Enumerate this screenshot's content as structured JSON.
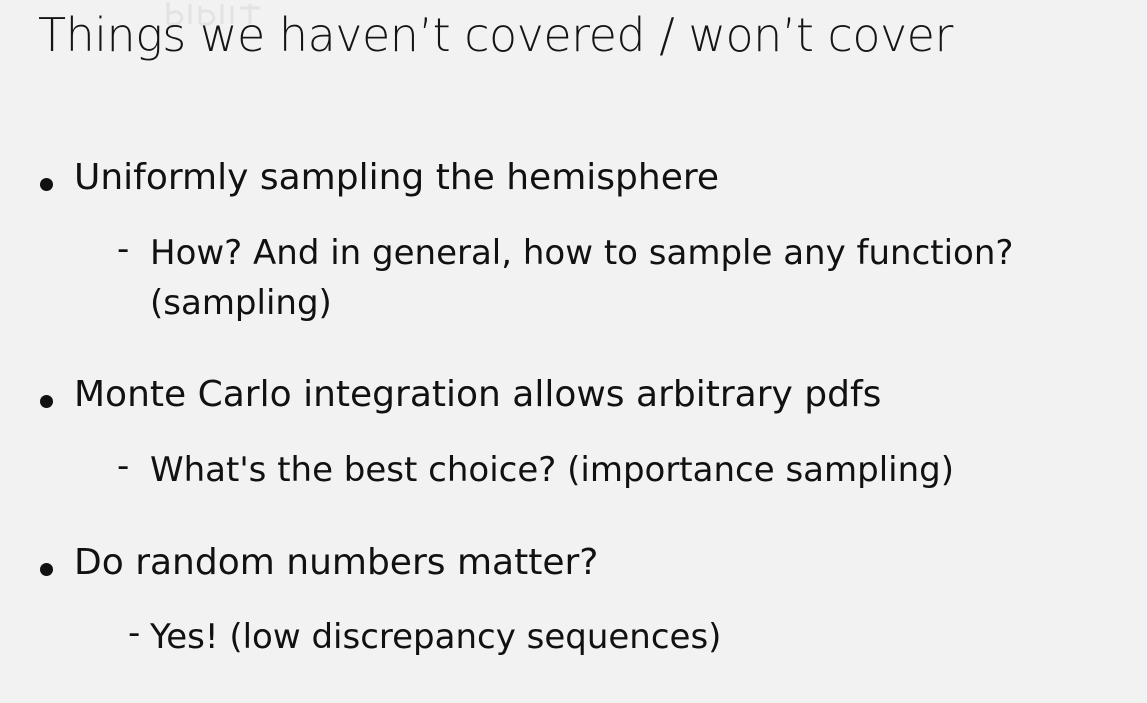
{
  "title": "Things we haven’t covered / won’t cover",
  "bullets": [
    {
      "text": "Uniformly sampling the hemisphere",
      "sub": {
        "dash": "-",
        "line1": "How? And in general, how to sample any function?",
        "line2": "(sampling)"
      }
    },
    {
      "text": "Monte Carlo integration allows arbitrary pdfs",
      "sub": {
        "dash": "-",
        "line1": "What's the best choice? (importance sampling)"
      }
    },
    {
      "text": "Do random numbers matter?",
      "sub": {
        "dash": "-",
        "line1": "Yes! (low discrepancy sequences)"
      }
    }
  ]
}
